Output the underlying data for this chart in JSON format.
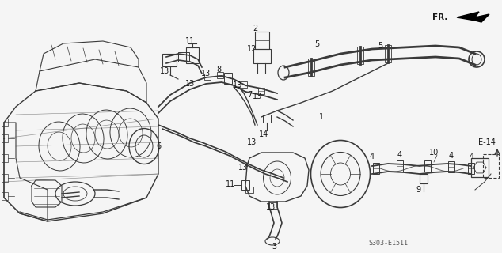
{
  "bg_color": "#f5f5f5",
  "line_color": "#3a3a3a",
  "text_color": "#1a1a1a",
  "fig_w": 6.34,
  "fig_h": 3.2,
  "dpi": 100,
  "code_text": "S303-E1511",
  "fr_text": "FR.",
  "e14_text": "E-14"
}
